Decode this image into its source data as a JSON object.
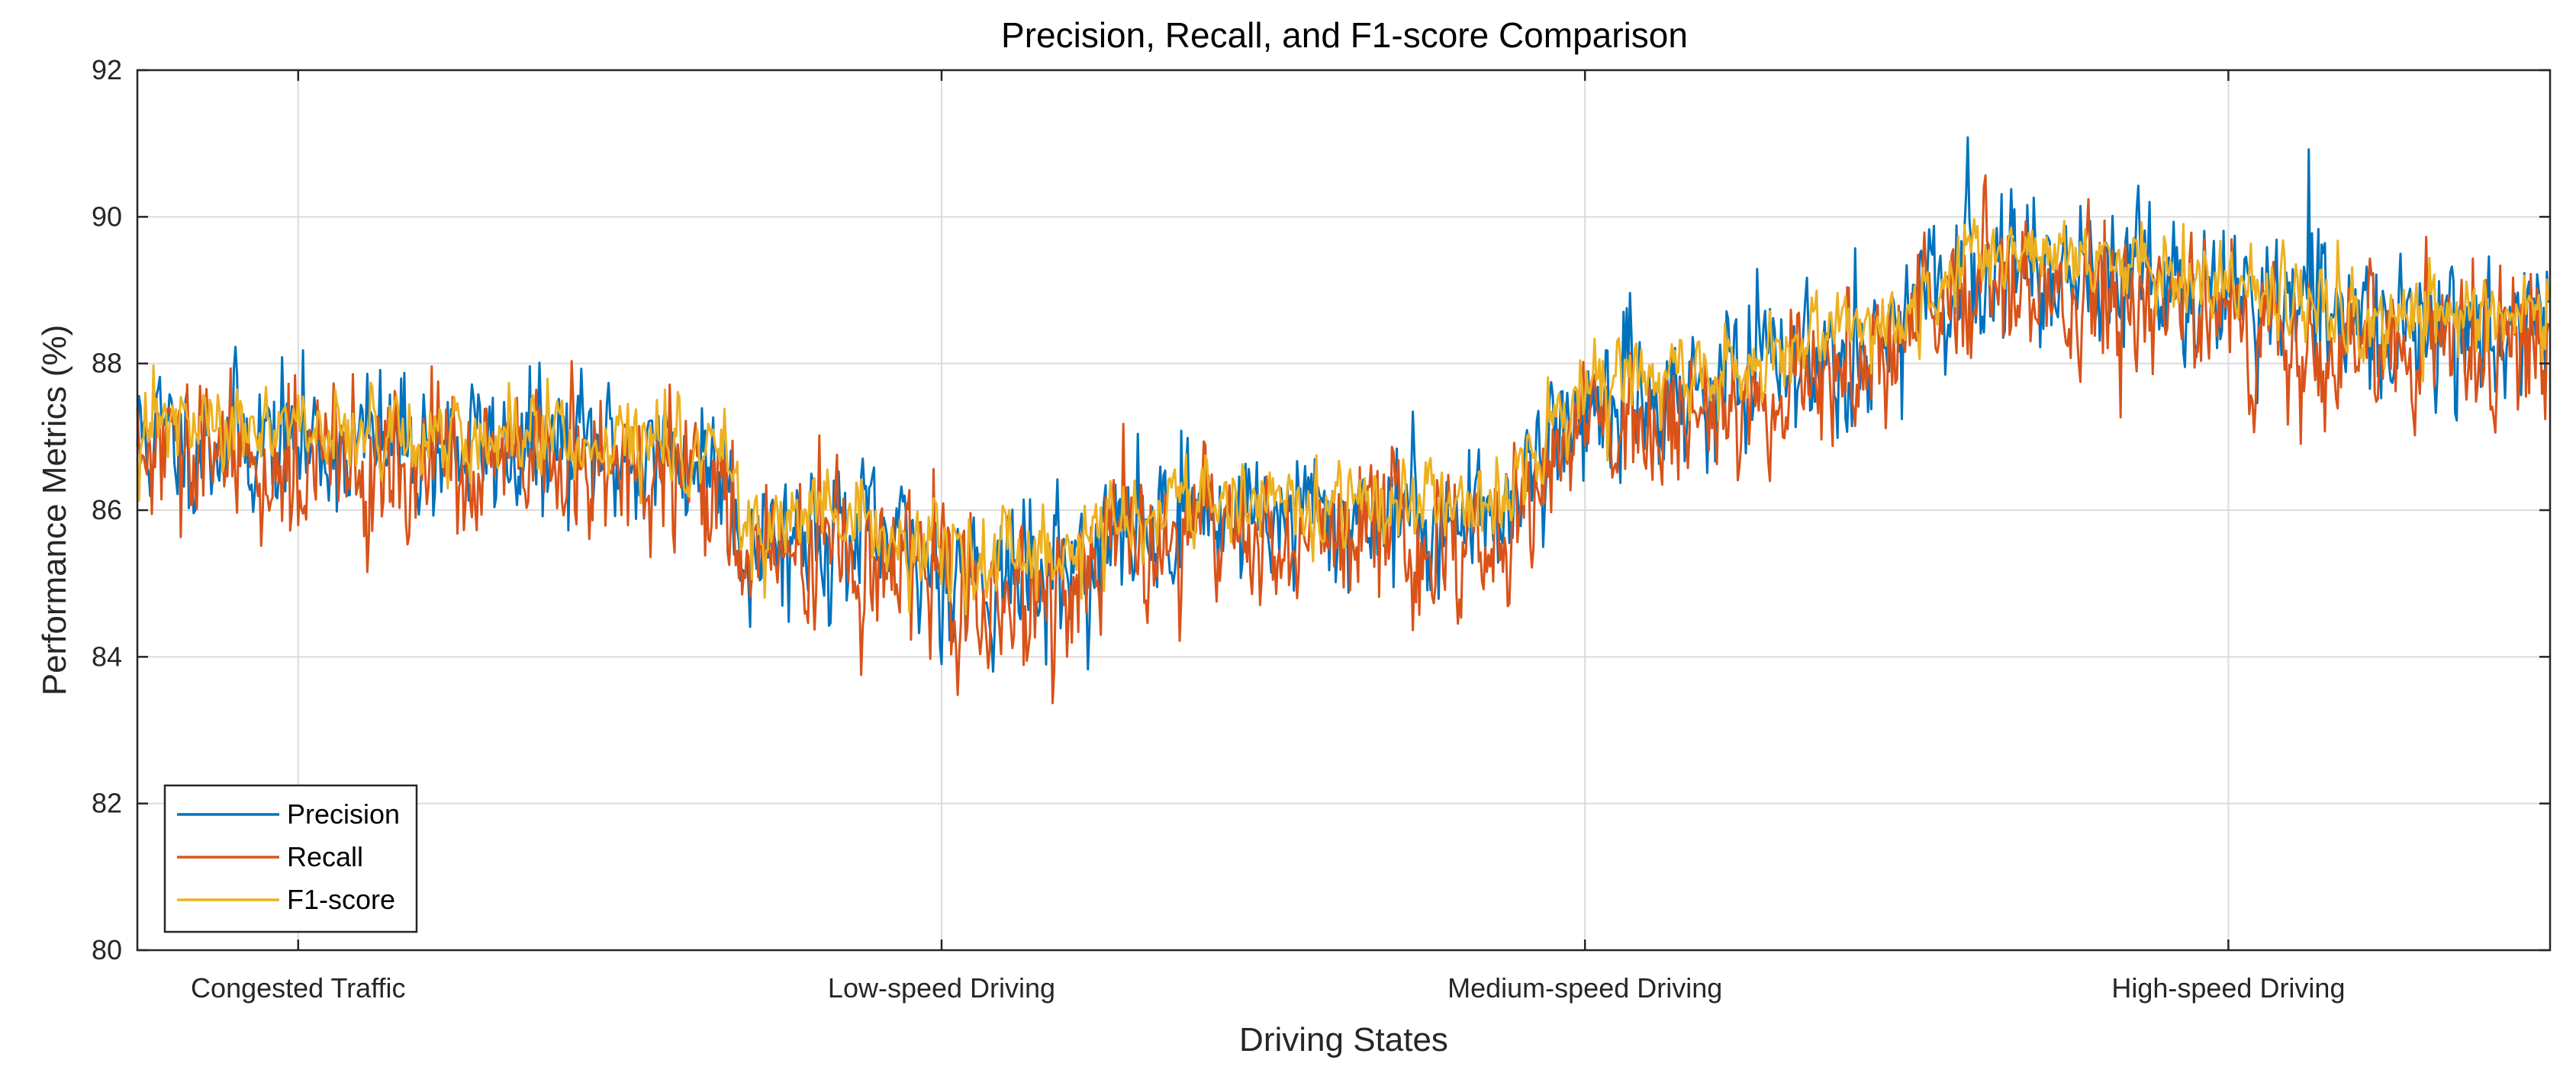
{
  "chart_data": {
    "type": "line",
    "title": "Precision, Recall, and F1-score Comparison",
    "xlabel": "Driving States",
    "ylabel": "Performance Metrics (%)",
    "ylim": [
      80,
      92
    ],
    "yticks": [
      80,
      82,
      84,
      86,
      88,
      90,
      92
    ],
    "xlim": [
      0,
      1500
    ],
    "xticks": [
      100,
      500,
      900,
      1300
    ],
    "categories": [
      "Congested Traffic",
      "Low-speed Driving",
      "Medium-speed Driving",
      "High-speed Driving"
    ],
    "grid": true,
    "legend_position": "bottom-left",
    "n_points": 1500,
    "regimes": [
      {
        "name": "Congested Traffic",
        "anchor_samples": [
          0,
          150,
          300,
          370
        ],
        "anchor_values": [
          87.0,
          86.9,
          86.8,
          86.6
        ]
      },
      {
        "name": "Low-speed Driving",
        "anchor_samples": [
          375,
          420,
          500,
          560,
          650,
          740
        ],
        "anchor_values": [
          85.6,
          85.8,
          85.2,
          85.1,
          86.0,
          85.9
        ]
      },
      {
        "name": "Medium-speed Driving",
        "anchor_samples": [
          760,
          840,
          860,
          900,
          1000,
          1100
        ],
        "anchor_values": [
          86.0,
          85.8,
          86.5,
          87.4,
          87.8,
          88.5
        ]
      },
      {
        "name": "High-speed Driving",
        "anchor_samples": [
          1140,
          1200,
          1300,
          1400,
          1499
        ],
        "anchor_values": [
          89.3,
          89.4,
          88.9,
          88.5,
          88.6
        ]
      }
    ],
    "series": [
      {
        "name": "Precision",
        "color": "#0072BD",
        "noise_std": 0.85,
        "offset": 0.0,
        "seed": 11
      },
      {
        "name": "Recall",
        "color": "#D95319",
        "noise_std": 0.9,
        "offset": -0.3,
        "seed": 29
      },
      {
        "name": "F1-score",
        "color": "#EDB120",
        "noise_std": 0.5,
        "offset": 0.15,
        "seed": 47
      }
    ]
  }
}
